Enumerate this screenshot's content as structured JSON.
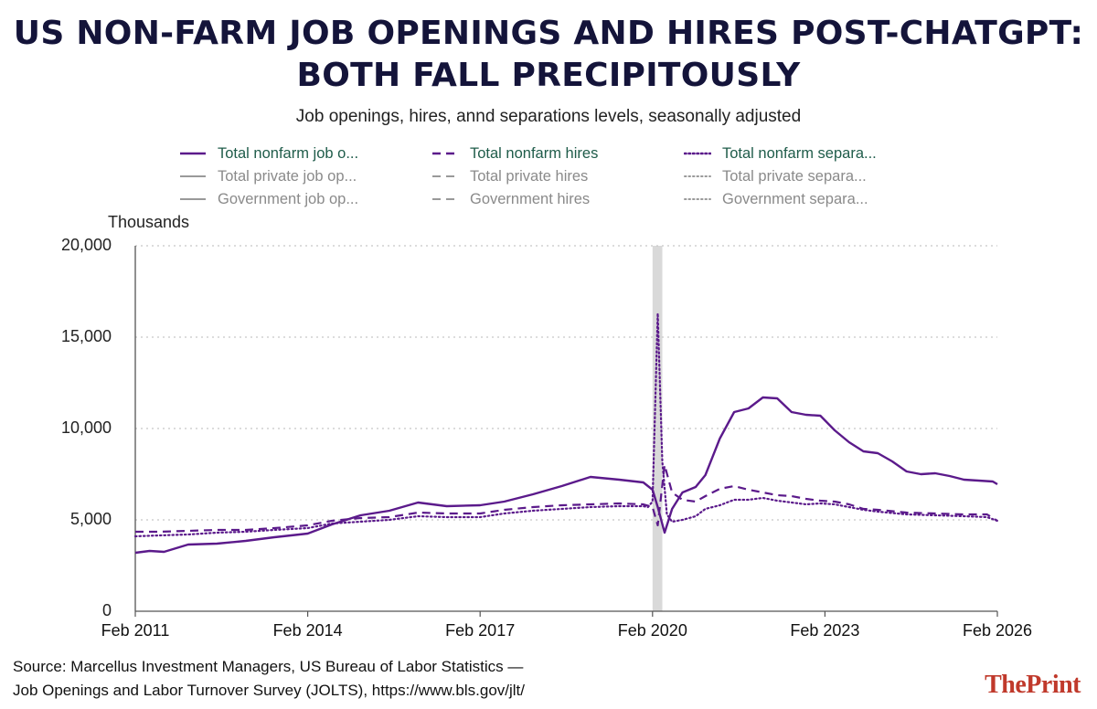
{
  "header": {
    "title_line1": "US NON-FARM JOB OPENINGS AND HIRES POST-CHATGPT:",
    "title_line2": "BOTH FALL PRECIPITOUSLY",
    "subtitle": "Job openings, hires, annd separations levels, seasonally adjusted"
  },
  "legend": [
    {
      "label": "Total nonfarm job o...",
      "style": "solid",
      "color": "#5b1a8b",
      "emphasis": true
    },
    {
      "label": "Total nonfarm hires",
      "style": "dashed",
      "color": "#5b1a8b",
      "emphasis": true
    },
    {
      "label": "Total nonfarm separa...",
      "style": "dotted",
      "color": "#5b1a8b",
      "emphasis": true
    },
    {
      "label": "Total private job op...",
      "style": "solid",
      "color": "#999999",
      "emphasis": false
    },
    {
      "label": "Total private hires",
      "style": "dashed",
      "color": "#999999",
      "emphasis": false
    },
    {
      "label": "Total private separa...",
      "style": "dotted",
      "color": "#999999",
      "emphasis": false
    },
    {
      "label": "Government job op...",
      "style": "solid",
      "color": "#999999",
      "emphasis": false
    },
    {
      "label": "Government hires",
      "style": "dashed",
      "color": "#999999",
      "emphasis": false
    },
    {
      "label": "Government separa...",
      "style": "dotted",
      "color": "#999999",
      "emphasis": false
    }
  ],
  "chart_data": {
    "type": "line",
    "title": "US NON-FARM JOB OPENINGS AND HIRES POST-CHATGPT: BOTH FALL PRECIPITOUSLY",
    "subtitle": "Job openings, hires, annd separations levels, seasonally adjusted",
    "ylabel": "Thousands",
    "xlabel": "",
    "ylim": [
      0,
      20000
    ],
    "xlim": [
      2011.08,
      2026.08
    ],
    "yticks": [
      0,
      5000,
      10000,
      15000,
      20000
    ],
    "ytick_labels": [
      "0",
      "5,000",
      "10,000",
      "15,000",
      "20,000"
    ],
    "xticks": [
      2011.08,
      2014.08,
      2017.08,
      2020.08,
      2023.08,
      2026.08
    ],
    "xtick_labels": [
      "Feb 2011",
      "Feb 2014",
      "Feb 2017",
      "Feb 2020",
      "Feb 2023",
      "Feb 2026"
    ],
    "grid": "horizontal dotted",
    "recession_band": {
      "start": 2020.08,
      "end": 2020.25
    },
    "series": [
      {
        "name": "Total nonfarm job openings",
        "style": "solid",
        "color": "#5b1a8b",
        "x": [
          2011.08,
          2011.33,
          2011.58,
          2012.0,
          2012.5,
          2013.0,
          2013.5,
          2014.08,
          2014.5,
          2015.0,
          2015.5,
          2016.0,
          2016.5,
          2017.08,
          2017.5,
          2018.0,
          2018.5,
          2019.0,
          2019.5,
          2019.92,
          2020.08,
          2020.17,
          2020.29,
          2020.42,
          2020.6,
          2020.83,
          2021.0,
          2021.25,
          2021.5,
          2021.75,
          2022.0,
          2022.25,
          2022.5,
          2022.75,
          2023.0,
          2023.25,
          2023.5,
          2023.75,
          2024.0,
          2024.25,
          2024.5,
          2024.75,
          2025.0,
          2025.25,
          2025.5,
          2025.75,
          2026.0,
          2026.08
        ],
        "values": [
          3200,
          3300,
          3250,
          3650,
          3700,
          3850,
          4050,
          4250,
          4750,
          5250,
          5500,
          5950,
          5750,
          5800,
          6000,
          6400,
          6850,
          7350,
          7200,
          7050,
          6650,
          5700,
          4300,
          5600,
          6500,
          6800,
          7450,
          9450,
          10900,
          11100,
          11700,
          11650,
          10900,
          10750,
          10700,
          9900,
          9250,
          8750,
          8650,
          8200,
          7650,
          7500,
          7550,
          7400,
          7200,
          7150,
          7100,
          6950
        ]
      },
      {
        "name": "Total nonfarm hires",
        "style": "dashed",
        "color": "#5b1a8b",
        "x": [
          2011.08,
          2011.5,
          2012.0,
          2012.5,
          2013.0,
          2013.5,
          2014.08,
          2014.5,
          2015.0,
          2015.5,
          2016.0,
          2016.5,
          2017.08,
          2017.5,
          2018.0,
          2018.5,
          2019.0,
          2019.5,
          2019.92,
          2020.08,
          2020.17,
          2020.29,
          2020.42,
          2020.6,
          2020.83,
          2021.0,
          2021.25,
          2021.5,
          2021.75,
          2022.0,
          2022.25,
          2022.5,
          2022.75,
          2023.0,
          2023.25,
          2023.5,
          2023.75,
          2024.0,
          2024.5,
          2025.0,
          2025.5,
          2025.9,
          2026.08
        ],
        "values": [
          4350,
          4350,
          4400,
          4450,
          4450,
          4550,
          4700,
          4950,
          5100,
          5150,
          5400,
          5350,
          5350,
          5550,
          5700,
          5800,
          5850,
          5900,
          5850,
          5700,
          4700,
          8000,
          6500,
          6100,
          6000,
          6300,
          6700,
          6850,
          6650,
          6500,
          6350,
          6300,
          6150,
          6050,
          6000,
          5850,
          5600,
          5550,
          5400,
          5350,
          5300,
          5300,
          4950
        ]
      },
      {
        "name": "Total nonfarm separations",
        "style": "dotted",
        "color": "#5b1a8b",
        "x": [
          2011.08,
          2011.5,
          2012.0,
          2012.5,
          2013.0,
          2013.5,
          2014.08,
          2014.5,
          2015.0,
          2015.5,
          2016.0,
          2016.5,
          2017.08,
          2017.5,
          2018.0,
          2018.5,
          2019.0,
          2019.5,
          2019.92,
          2020.0,
          2020.08,
          2020.17,
          2020.25,
          2020.33,
          2020.42,
          2020.6,
          2020.83,
          2021.0,
          2021.25,
          2021.5,
          2021.75,
          2022.0,
          2022.25,
          2022.5,
          2022.75,
          2023.0,
          2023.25,
          2023.5,
          2023.75,
          2024.0,
          2024.5,
          2025.0,
          2025.5,
          2025.9,
          2026.08
        ],
        "values": [
          4100,
          4150,
          4200,
          4300,
          4350,
          4450,
          4550,
          4800,
          4900,
          5000,
          5200,
          5150,
          5150,
          5350,
          5500,
          5600,
          5700,
          5750,
          5750,
          5700,
          6000,
          16300,
          8200,
          5300,
          4900,
          5000,
          5200,
          5600,
          5800,
          6100,
          6100,
          6200,
          6050,
          5950,
          5850,
          5900,
          5850,
          5700,
          5550,
          5450,
          5300,
          5250,
          5200,
          5150,
          4950
        ]
      }
    ]
  },
  "footer": {
    "source_line1": "Source: Marcellus Investment Managers, US Bureau of Labor Statistics —",
    "source_line2": "Job Openings and Labor Turnover Survey (JOLTS), https://www.bls.gov/jlt/",
    "brand_part1": "The",
    "brand_part2": "Print"
  }
}
